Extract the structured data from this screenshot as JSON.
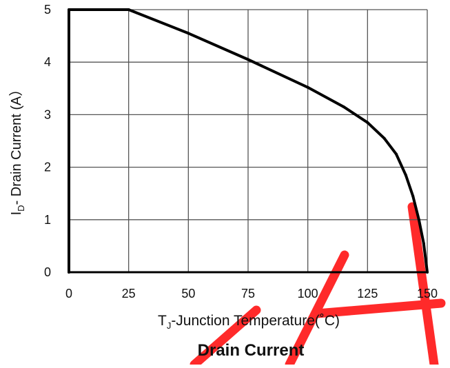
{
  "chart_data": {
    "type": "line",
    "title": "Drain Current",
    "xlabel": {
      "main": "T",
      "sub": "J",
      "rest": "-Junction Temperature(˚C)"
    },
    "ylabel": {
      "main": "I",
      "sub": "D",
      "rest": "- Drain Current (A）"
    },
    "xlim": [
      0,
      150
    ],
    "ylim": [
      0,
      5
    ],
    "x_ticks": [
      "0",
      "25",
      "50",
      "75",
      "100",
      "125",
      "150"
    ],
    "y_ticks": [
      "0",
      "1",
      "2",
      "3",
      "4",
      "5"
    ],
    "grid": true,
    "series": [
      {
        "color": "#000000",
        "points": [
          [
            0,
            0
          ],
          [
            0,
            5
          ],
          [
            25,
            5
          ],
          [
            50,
            4.55
          ],
          [
            75,
            4.05
          ],
          [
            100,
            3.52
          ],
          [
            115,
            3.15
          ],
          [
            125,
            2.85
          ],
          [
            132,
            2.55
          ],
          [
            137,
            2.25
          ],
          [
            141,
            1.85
          ],
          [
            144,
            1.45
          ],
          [
            146.5,
            1.0
          ],
          [
            148.5,
            0.55
          ],
          [
            150,
            0
          ]
        ]
      }
    ]
  },
  "watermark": {
    "color": "#ff2a2a"
  }
}
